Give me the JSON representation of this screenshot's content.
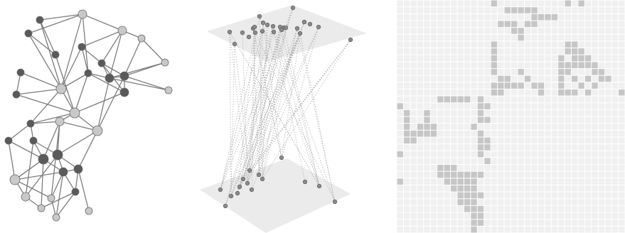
{
  "panels": [
    {
      "id": "network",
      "title": "",
      "node_count": 34,
      "colors": {
        "light_node": "#c8c8c8",
        "dark_node": "#5a5a5a",
        "edge": "#7d7d7d"
      }
    },
    {
      "id": "layered-network",
      "title": "",
      "upper_layer_nodes": 25,
      "lower_layer_nodes": 15,
      "colors": {
        "plane": "#ebebeb",
        "node": "#8a8a8a",
        "interlayer_edge": "#a8a8a8"
      }
    },
    {
      "id": "adjacency-matrix",
      "title": "",
      "grid_size": 34,
      "colors": {
        "background": "#f0f0f0",
        "grid_line": "#ffffff",
        "filled": "#c6c6c6"
      }
    }
  ]
}
